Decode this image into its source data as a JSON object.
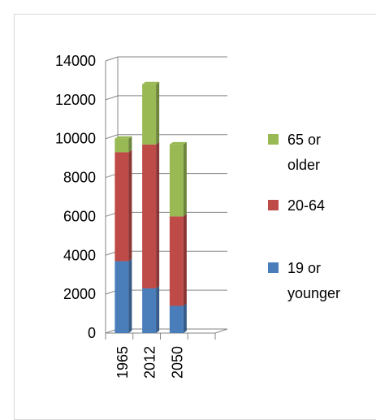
{
  "chart_data": {
    "type": "bar",
    "stacked": true,
    "style": "3d-column",
    "categories": [
      "1965",
      "2012",
      "2050"
    ],
    "series": [
      {
        "name": "19 or younger",
        "color": "#4a7ebb",
        "values": [
          3700,
          2300,
          1400
        ]
      },
      {
        "name": "20-64",
        "color": "#be4b48",
        "values": [
          5600,
          7400,
          4600
        ]
      },
      {
        "name": "65 or older",
        "color": "#98b954",
        "values": [
          700,
          3100,
          3700
        ]
      }
    ],
    "legend_order": [
      "65 or older",
      "20-64",
      "19 or younger"
    ],
    "legend_text": {
      "65 or older": [
        "65 or",
        "older"
      ],
      "20-64": [
        "20-64"
      ],
      "19 or younger": [
        "19 or",
        "younger"
      ]
    },
    "y_ticks": [
      "0",
      "2000",
      "4000",
      "6000",
      "8000",
      "10000",
      "12000",
      "14000"
    ],
    "ylim": [
      0,
      14000
    ],
    "grid": true,
    "legend_position": "right",
    "title": "",
    "xlabel": "",
    "ylabel": ""
  }
}
